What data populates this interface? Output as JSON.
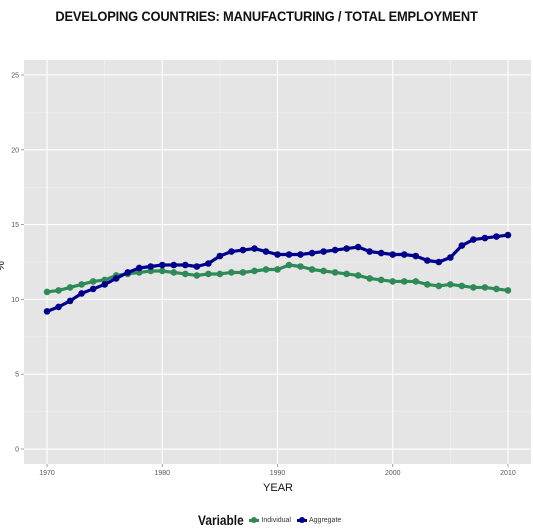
{
  "chart_data": {
    "type": "line",
    "title": "DEVELOPING COUNTRIES: MANUFACTURING / TOTAL EMPLOYMENT",
    "xlabel": "YEAR",
    "ylabel": "%",
    "xlim": [
      1968,
      2012
    ],
    "ylim": [
      -1,
      26
    ],
    "x_ticks": [
      1970,
      1980,
      1990,
      2000,
      2010
    ],
    "y_ticks": [
      0,
      5,
      10,
      15,
      20,
      25
    ],
    "grid": true,
    "legend_position": "bottom",
    "legend_title": "Variable",
    "x": [
      1970,
      1971,
      1972,
      1973,
      1974,
      1975,
      1976,
      1977,
      1978,
      1979,
      1980,
      1981,
      1982,
      1983,
      1984,
      1985,
      1986,
      1987,
      1988,
      1989,
      1990,
      1991,
      1992,
      1993,
      1994,
      1995,
      1996,
      1997,
      1998,
      1999,
      2000,
      2001,
      2002,
      2003,
      2004,
      2005,
      2006,
      2007,
      2008,
      2009,
      2010
    ],
    "series": [
      {
        "name": "Individual",
        "color": "#2e8b57",
        "values": [
          10.5,
          10.6,
          10.8,
          11.0,
          11.2,
          11.3,
          11.6,
          11.7,
          11.8,
          11.9,
          11.9,
          11.8,
          11.7,
          11.6,
          11.7,
          11.7,
          11.8,
          11.8,
          11.9,
          12.0,
          12.0,
          12.3,
          12.2,
          12.0,
          11.9,
          11.8,
          11.7,
          11.6,
          11.4,
          11.3,
          11.2,
          11.2,
          11.2,
          11.0,
          10.9,
          11.0,
          10.9,
          10.8,
          10.8,
          10.7,
          10.6
        ]
      },
      {
        "name": "Aggregate",
        "color": "#00008b",
        "values": [
          9.2,
          9.5,
          9.9,
          10.4,
          10.7,
          11.0,
          11.4,
          11.8,
          12.1,
          12.2,
          12.3,
          12.3,
          12.3,
          12.2,
          12.4,
          12.9,
          13.2,
          13.3,
          13.4,
          13.2,
          13.0,
          13.0,
          13.0,
          13.1,
          13.2,
          13.3,
          13.4,
          13.5,
          13.2,
          13.1,
          13.0,
          13.0,
          12.9,
          12.6,
          12.5,
          12.8,
          13.6,
          14.0,
          14.1,
          14.2,
          14.3
        ]
      }
    ]
  }
}
